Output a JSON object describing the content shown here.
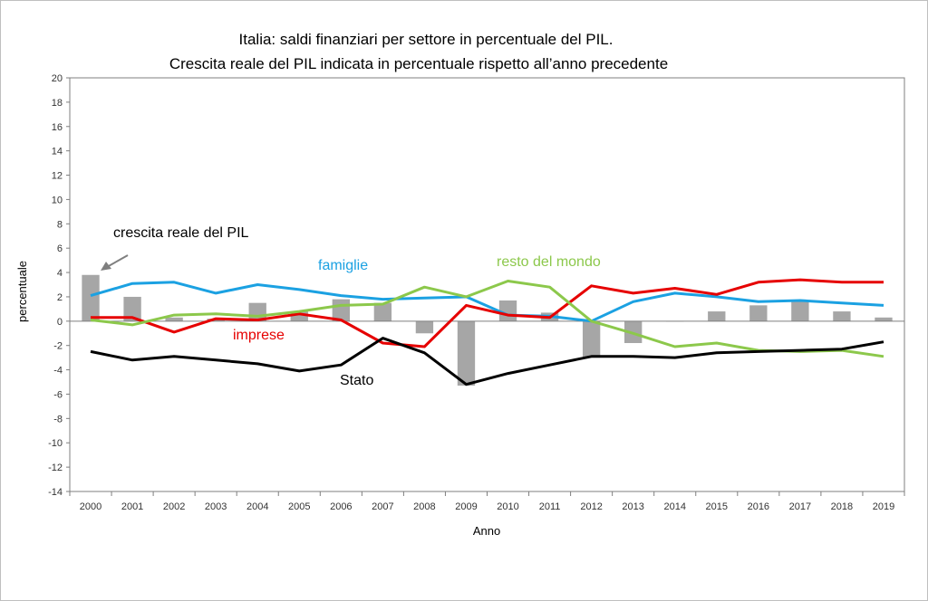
{
  "chart_data": {
    "type": "bar+line",
    "title": "Italia: saldi finanziari per  settore in percentuale del PIL.",
    "subtitle": "Crescita reale del PIL indicata in percentuale rispetto all’anno precedente",
    "xlabel": "Anno",
    "ylabel": "percentuale",
    "ylim": [
      -14,
      20
    ],
    "yticks": [
      -14,
      -12,
      -10,
      -8,
      -6,
      -4,
      -2,
      0,
      2,
      4,
      6,
      8,
      10,
      12,
      14,
      16,
      18,
      20
    ],
    "grid": false,
    "categories": [
      "2000",
      "2001",
      "2002",
      "2003",
      "2004",
      "2005",
      "2006",
      "2007",
      "2008",
      "2009",
      "2010",
      "2011",
      "2012",
      "2013",
      "2014",
      "2015",
      "2016",
      "2017",
      "2018",
      "2019"
    ],
    "bars": {
      "name": "crescita reale del PIL",
      "color": "#a6a6a6",
      "values": [
        3.8,
        2.0,
        0.3,
        0.2,
        1.5,
        0.8,
        1.8,
        1.5,
        -1.0,
        -5.3,
        1.7,
        0.7,
        -3.0,
        -1.8,
        0.0,
        0.8,
        1.3,
        1.7,
        0.8,
        0.3
      ]
    },
    "series": [
      {
        "name": "famiglie",
        "color": "#1ba1e2",
        "values": [
          2.1,
          3.1,
          3.2,
          2.3,
          3.0,
          2.6,
          2.1,
          1.8,
          1.9,
          2.0,
          0.5,
          0.4,
          0.0,
          1.6,
          2.3,
          2.0,
          1.6,
          1.7,
          1.5,
          1.3
        ]
      },
      {
        "name": "imprese",
        "color": "#e60000",
        "values": [
          0.3,
          0.3,
          -0.9,
          0.2,
          0.1,
          0.6,
          0.1,
          -1.8,
          -2.1,
          1.3,
          0.5,
          0.3,
          2.9,
          2.3,
          2.7,
          2.2,
          3.2,
          3.4,
          3.2,
          3.2
        ]
      },
      {
        "name": "resto del mondo",
        "color": "#8cc84b",
        "values": [
          0.1,
          -0.3,
          0.5,
          0.6,
          0.4,
          0.8,
          1.3,
          1.4,
          2.8,
          2.0,
          3.3,
          2.8,
          0.0,
          -1.0,
          -2.1,
          -1.8,
          -2.4,
          -2.5,
          -2.4,
          -2.9
        ]
      },
      {
        "name": "Stato",
        "color": "#000000",
        "values": [
          -2.5,
          -3.2,
          -2.9,
          -3.2,
          -3.5,
          -4.1,
          -3.6,
          -1.4,
          -2.6,
          -5.2,
          -4.3,
          -3.6,
          -2.9,
          -2.9,
          -3.0,
          -2.6,
          -2.5,
          -2.4,
          -2.3,
          -1.7
        ]
      }
    ],
    "annotations": {
      "gdp_label": "crescita reale del PIL",
      "famiglie_label": "famiglie",
      "imprese_label": "imprese",
      "resto_label": "resto del mondo",
      "stato_label": "Stato"
    }
  }
}
